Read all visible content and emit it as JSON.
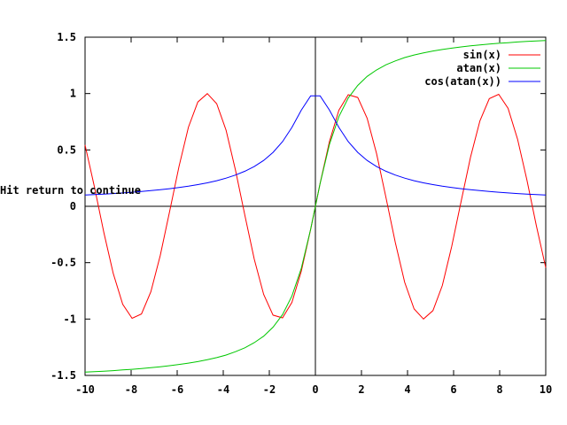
{
  "message": "Hit return to continue",
  "chart_data": {
    "type": "line",
    "xlim": [
      -10,
      10
    ],
    "ylim": [
      -1.5,
      1.5
    ],
    "x_ticks": [
      "-10",
      "-8",
      "-6",
      "-4",
      "-2",
      "0",
      "2",
      "4",
      "6",
      "8",
      "10"
    ],
    "y_ticks": [
      "-1.5",
      "-1",
      "-0.5",
      "0",
      "0.5",
      "1",
      "1.5"
    ],
    "grid": false,
    "zero_axes": true,
    "legend_position": "top-right",
    "x": [
      -10,
      -9.5918,
      -9.1837,
      -8.7755,
      -8.3673,
      -7.9592,
      -7.551,
      -7.1429,
      -6.7347,
      -6.3265,
      -5.9184,
      -5.5102,
      -5.102,
      -4.6939,
      -4.2857,
      -3.8776,
      -3.4694,
      -3.0612,
      -2.6531,
      -2.2449,
      -1.8367,
      -1.4286,
      -1.0204,
      -0.6122,
      -0.2041,
      0.2041,
      0.6122,
      1.0204,
      1.4286,
      1.8367,
      2.2449,
      2.6531,
      3.0612,
      3.4694,
      3.8776,
      4.2857,
      4.6939,
      5.102,
      5.5102,
      5.9184,
      6.3265,
      6.7347,
      7.1429,
      7.551,
      7.9592,
      8.3673,
      8.7755,
      9.1837,
      9.5918,
      10
    ],
    "series": [
      {
        "name": "sin(x)",
        "color": "#ff0000",
        "values": [
          0.544,
          0.1719,
          -0.2314,
          -0.5955,
          -0.8686,
          -0.9937,
          -0.9546,
          -0.7579,
          -0.4359,
          -0.0436,
          0.3549,
          0.7022,
          0.9255,
          0.9996,
          0.9103,
          0.6747,
          0.3211,
          -0.0804,
          -0.469,
          -0.7813,
          -0.965,
          -0.9898,
          -0.8523,
          -0.5747,
          -0.2027,
          0.2027,
          0.5747,
          0.8523,
          0.9898,
          0.965,
          0.7813,
          0.469,
          0.0804,
          -0.3211,
          -0.6747,
          -0.9103,
          -0.9996,
          -0.9255,
          -0.7022,
          -0.3549,
          0.0436,
          0.4359,
          0.7579,
          0.9546,
          0.9937,
          0.8686,
          0.5955,
          0.2314,
          -0.1719,
          -0.544
        ]
      },
      {
        "name": "atan(x)",
        "color": "#00c800",
        "values": [
          -1.4711,
          -1.4668,
          -1.4623,
          -1.4572,
          -1.4516,
          -1.4459,
          -1.439,
          -1.4316,
          -1.4232,
          -1.4138,
          -1.403,
          -1.3905,
          -1.3775,
          -1.3612,
          -1.3423,
          -1.3195,
          -1.2898,
          -1.2552,
          -1.2096,
          -1.1518,
          -1.0722,
          -0.9601,
          -0.7955,
          -0.5494,
          -0.2013,
          0.2013,
          0.5494,
          0.7955,
          0.9601,
          1.0722,
          1.1518,
          1.2096,
          1.2552,
          1.2898,
          1.3195,
          1.3423,
          1.3612,
          1.3775,
          1.3905,
          1.403,
          1.4138,
          1.4232,
          1.4316,
          1.439,
          1.4459,
          1.4516,
          1.4572,
          1.4623,
          1.4668,
          1.4711
        ]
      },
      {
        "name": "cos(atan(x))",
        "color": "#0000ff",
        "values": [
          0.0995,
          0.1037,
          0.1082,
          0.1132,
          0.1187,
          0.1247,
          0.1313,
          0.1387,
          0.1469,
          0.1562,
          0.1667,
          0.1785,
          0.1923,
          0.2083,
          0.2273,
          0.2497,
          0.2771,
          0.3108,
          0.3529,
          0.4068,
          0.4781,
          0.5735,
          0.7,
          0.8529,
          0.9798,
          0.9798,
          0.8529,
          0.7,
          0.5735,
          0.4781,
          0.4068,
          0.3529,
          0.3108,
          0.2771,
          0.2497,
          0.2273,
          0.2083,
          0.1923,
          0.1785,
          0.1667,
          0.1562,
          0.1469,
          0.1387,
          0.1313,
          0.1247,
          0.1187,
          0.1132,
          0.1082,
          0.1037,
          0.0995
        ]
      }
    ]
  }
}
